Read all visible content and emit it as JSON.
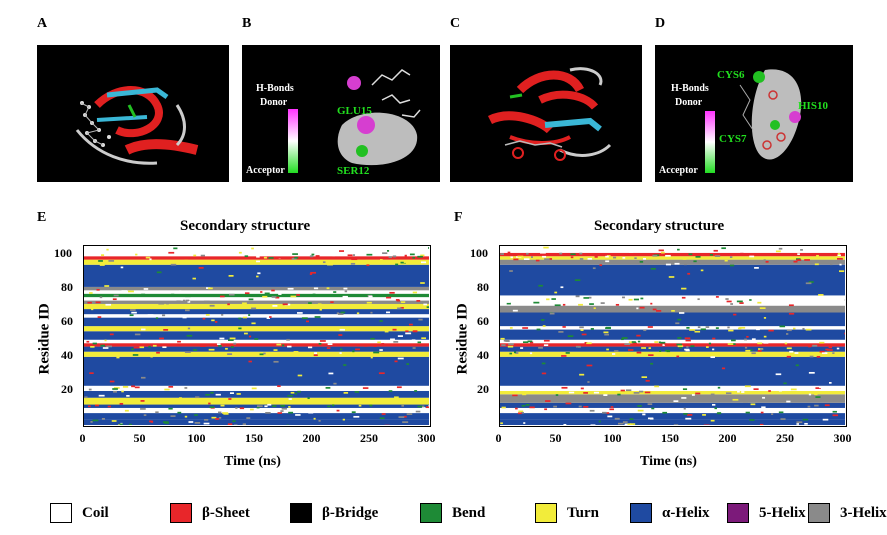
{
  "panels": {
    "A": {
      "label": "A"
    },
    "B": {
      "label": "B",
      "hbonds": "H-Bonds",
      "donor": "Donor",
      "acceptor": "Acceptor",
      "res1": "GLU15",
      "res2": "SER12"
    },
    "C": {
      "label": "C"
    },
    "D": {
      "label": "D",
      "hbonds": "H-Bonds",
      "donor": "Donor",
      "acceptor": "Acceptor",
      "res1": "CYS6",
      "res2": "HIS10",
      "res3": "CYS7"
    },
    "E": {
      "label": "E"
    },
    "F": {
      "label": "F"
    }
  },
  "colors": {
    "Coil": "#ffffff",
    "b-Sheet": "#e8262a",
    "b-Bridge": "#000000",
    "Bend": "#1e8a36",
    "Turn": "#f2ec3a",
    "a-Helix": "#1f4aa1",
    "5-Helix": "#7c1a7a",
    "3-Helix": "#8a8a8a"
  },
  "legend": [
    {
      "key": "Coil",
      "label": "Coil"
    },
    {
      "key": "b-Sheet",
      "label": "β-Sheet"
    },
    {
      "key": "b-Bridge",
      "label": "β-Bridge"
    },
    {
      "key": "Bend",
      "label": "Bend"
    },
    {
      "key": "Turn",
      "label": "Turn"
    },
    {
      "key": "a-Helix",
      "label": "α-Helix"
    },
    {
      "key": "5-Helix",
      "label": "5-Helix"
    },
    {
      "key": "3-Helix",
      "label": "3-Helix"
    }
  ],
  "chart_data": [
    {
      "type": "heatmap",
      "panel": "E",
      "title": "Secondary structure",
      "xlabel": "Time (ns)",
      "ylabel": "Residue ID",
      "xlim": [
        0,
        300
      ],
      "ylim": [
        0,
        105
      ],
      "xticks": [
        0,
        50,
        100,
        150,
        200,
        250,
        300
      ],
      "yticks": [
        20,
        40,
        60,
        80,
        100
      ],
      "bands": [
        {
          "from": 0,
          "to": 3,
          "ss": "a-Helix"
        },
        {
          "from": 3,
          "to": 7,
          "ss": "a-Helix"
        },
        {
          "from": 7,
          "to": 10,
          "ss": "Coil"
        },
        {
          "from": 10,
          "to": 12,
          "ss": "a-Helix"
        },
        {
          "from": 12,
          "to": 16,
          "ss": "Turn"
        },
        {
          "from": 16,
          "to": 20,
          "ss": "a-Helix"
        },
        {
          "from": 20,
          "to": 23,
          "ss": "Coil"
        },
        {
          "from": 23,
          "to": 40,
          "ss": "a-Helix"
        },
        {
          "from": 40,
          "to": 43,
          "ss": "Turn"
        },
        {
          "from": 43,
          "to": 46,
          "ss": "a-Helix"
        },
        {
          "from": 46,
          "to": 48,
          "ss": "b-Sheet"
        },
        {
          "from": 48,
          "to": 50,
          "ss": "Coil"
        },
        {
          "from": 50,
          "to": 55,
          "ss": "a-Helix"
        },
        {
          "from": 55,
          "to": 58,
          "ss": "Turn"
        },
        {
          "from": 58,
          "to": 63,
          "ss": "a-Helix"
        },
        {
          "from": 63,
          "to": 65,
          "ss": "Coil"
        },
        {
          "from": 65,
          "to": 68,
          "ss": "a-Helix"
        },
        {
          "from": 68,
          "to": 71,
          "ss": "Turn"
        },
        {
          "from": 71,
          "to": 73,
          "ss": "3-Helix"
        },
        {
          "from": 73,
          "to": 75,
          "ss": "Coil"
        },
        {
          "from": 75,
          "to": 77,
          "ss": "Bend"
        },
        {
          "from": 77,
          "to": 79,
          "ss": "Coil"
        },
        {
          "from": 79,
          "to": 81,
          "ss": "3-Helix"
        },
        {
          "from": 81,
          "to": 94,
          "ss": "a-Helix"
        },
        {
          "from": 94,
          "to": 97,
          "ss": "Turn"
        },
        {
          "from": 97,
          "to": 99,
          "ss": "b-Sheet"
        },
        {
          "from": 99,
          "to": 101,
          "ss": "Coil"
        },
        {
          "from": 101,
          "to": 105,
          "ss": "Coil"
        }
      ]
    },
    {
      "type": "heatmap",
      "panel": "F",
      "title": "Secondary structure",
      "xlabel": "Time (ns)",
      "ylabel": "Residue ID",
      "xlim": [
        0,
        300
      ],
      "ylim": [
        0,
        105
      ],
      "xticks": [
        0,
        50,
        100,
        150,
        200,
        250,
        300
      ],
      "yticks": [
        20,
        40,
        60,
        80,
        100
      ],
      "bands": [
        {
          "from": 0,
          "to": 3,
          "ss": "a-Helix"
        },
        {
          "from": 3,
          "to": 7,
          "ss": "a-Helix"
        },
        {
          "from": 7,
          "to": 10,
          "ss": "Coil"
        },
        {
          "from": 10,
          "to": 13,
          "ss": "a-Helix"
        },
        {
          "from": 13,
          "to": 18,
          "ss": "3-Helix"
        },
        {
          "from": 18,
          "to": 20,
          "ss": "Turn"
        },
        {
          "from": 20,
          "to": 23,
          "ss": "Coil"
        },
        {
          "from": 23,
          "to": 40,
          "ss": "a-Helix"
        },
        {
          "from": 40,
          "to": 43,
          "ss": "Turn"
        },
        {
          "from": 43,
          "to": 46,
          "ss": "a-Helix"
        },
        {
          "from": 46,
          "to": 48,
          "ss": "b-Sheet"
        },
        {
          "from": 48,
          "to": 50,
          "ss": "Coil"
        },
        {
          "from": 50,
          "to": 56,
          "ss": "a-Helix"
        },
        {
          "from": 56,
          "to": 58,
          "ss": "Coil"
        },
        {
          "from": 58,
          "to": 66,
          "ss": "a-Helix"
        },
        {
          "from": 66,
          "to": 70,
          "ss": "3-Helix"
        },
        {
          "from": 70,
          "to": 73,
          "ss": "Coil"
        },
        {
          "from": 73,
          "to": 76,
          "ss": "Coil"
        },
        {
          "from": 76,
          "to": 94,
          "ss": "a-Helix"
        },
        {
          "from": 94,
          "to": 97,
          "ss": "3-Helix"
        },
        {
          "from": 97,
          "to": 99,
          "ss": "Turn"
        },
        {
          "from": 99,
          "to": 101,
          "ss": "b-Sheet"
        },
        {
          "from": 101,
          "to": 105,
          "ss": "Coil"
        }
      ]
    }
  ]
}
